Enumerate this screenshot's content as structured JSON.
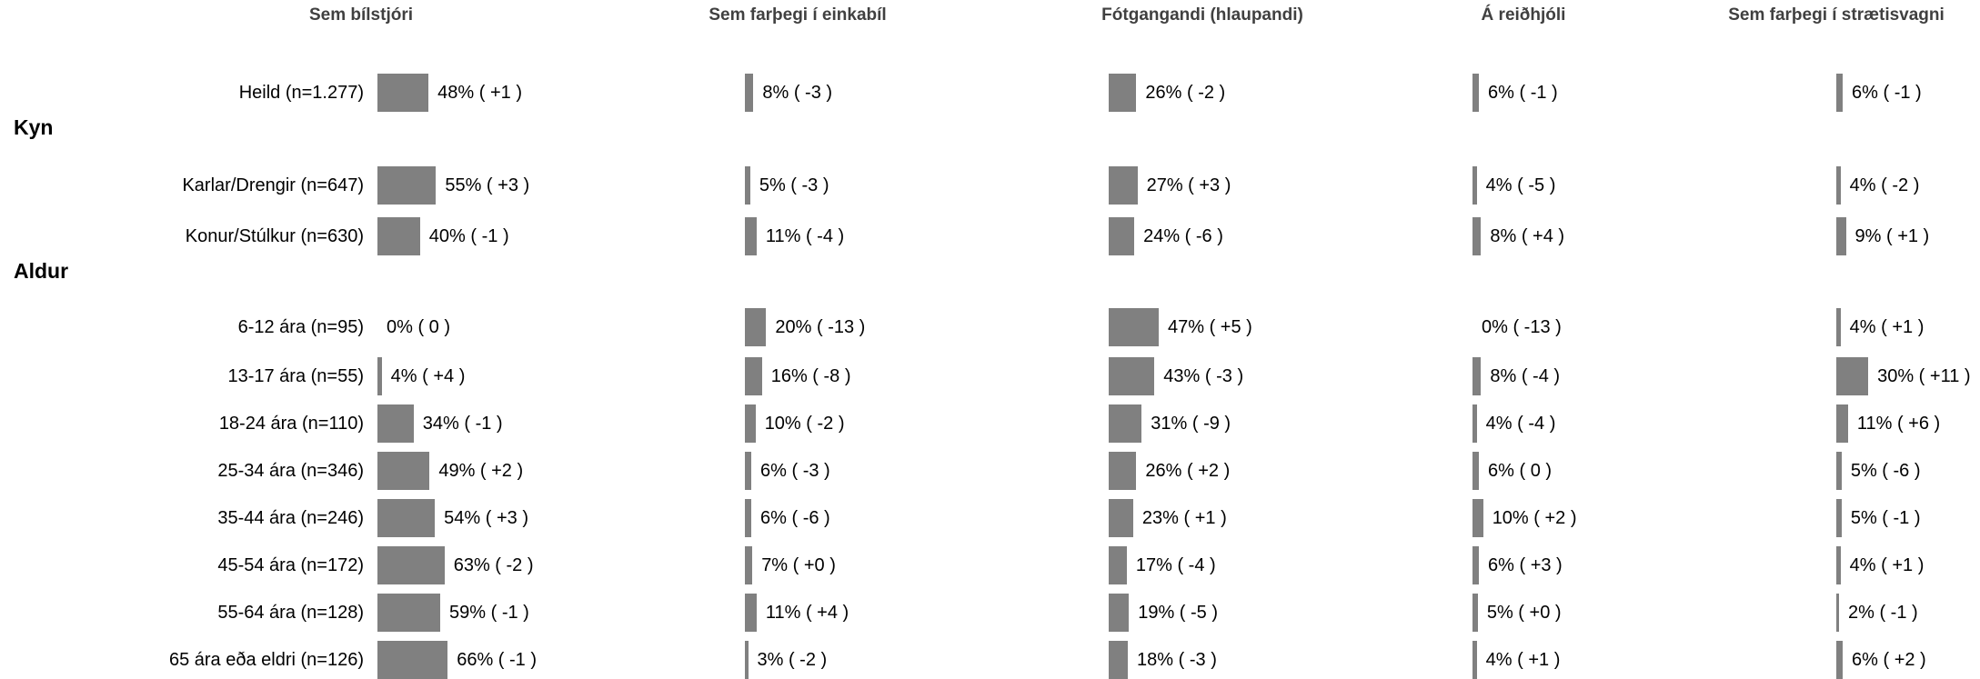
{
  "chart_data": {
    "type": "bar",
    "columns": [
      "Sem bílstjóri",
      "Sem farþegi í einkabíl",
      "Fótgangandi (hlaupandi)",
      "Á reiðhjóli",
      "Sem farþegi í strætisvagni"
    ],
    "groups": [
      {
        "name": "",
        "rows": [
          0
        ]
      },
      {
        "name": "Kyn",
        "rows": [
          1,
          2
        ]
      },
      {
        "name": "Aldur",
        "rows": [
          3,
          4,
          5,
          6,
          7,
          8,
          9,
          10
        ]
      }
    ],
    "rows": [
      {
        "label": "Heild (n=1.277)",
        "values": [
          48,
          8,
          26,
          6,
          6
        ],
        "changes": [
          "+1",
          "-3",
          "-2",
          "-1",
          "-1"
        ]
      },
      {
        "label": "Karlar/Drengir (n=647)",
        "values": [
          55,
          5,
          27,
          4,
          4
        ],
        "changes": [
          "+3",
          "-3",
          "+3",
          "-5",
          "-2"
        ]
      },
      {
        "label": "Konur/Stúlkur (n=630)",
        "values": [
          40,
          11,
          24,
          8,
          9
        ],
        "changes": [
          "-1",
          "-4",
          "-6",
          "+4",
          "+1"
        ]
      },
      {
        "label": "6-12 ára (n=95)",
        "values": [
          0,
          20,
          47,
          0,
          4
        ],
        "changes": [
          "0",
          "-13",
          "+5",
          "-13",
          "+1"
        ]
      },
      {
        "label": "13-17 ára (n=55)",
        "values": [
          4,
          16,
          43,
          8,
          30
        ],
        "changes": [
          "+4",
          "-8",
          "-3",
          "-4",
          "+11"
        ]
      },
      {
        "label": "18-24 ára (n=110)",
        "values": [
          34,
          10,
          31,
          4,
          11
        ],
        "changes": [
          "-1",
          "-2",
          "-9",
          "-4",
          "+6"
        ]
      },
      {
        "label": "25-34 ára (n=346)",
        "values": [
          49,
          6,
          26,
          6,
          5
        ],
        "changes": [
          "+2",
          "-3",
          "+2",
          "0",
          "-6"
        ]
      },
      {
        "label": "35-44 ára (n=246)",
        "values": [
          54,
          6,
          23,
          10,
          5
        ],
        "changes": [
          "+3",
          "-6",
          "+1",
          "+2",
          "-1"
        ]
      },
      {
        "label": "45-54 ára (n=172)",
        "values": [
          63,
          7,
          17,
          6,
          4
        ],
        "changes": [
          "-2",
          "+0",
          "-4",
          "+3",
          "+1"
        ]
      },
      {
        "label": "55-64 ára (n=128)",
        "values": [
          59,
          11,
          19,
          5,
          2
        ],
        "changes": [
          "-1",
          "+4",
          "-5",
          "+0",
          "-1"
        ]
      },
      {
        "label": "65 ára eða eldri (n=126)",
        "values": [
          66,
          3,
          18,
          4,
          6
        ],
        "changes": [
          "-1",
          "-2",
          "-3",
          "+1",
          "+2"
        ]
      }
    ],
    "bar_color": "#808080"
  }
}
